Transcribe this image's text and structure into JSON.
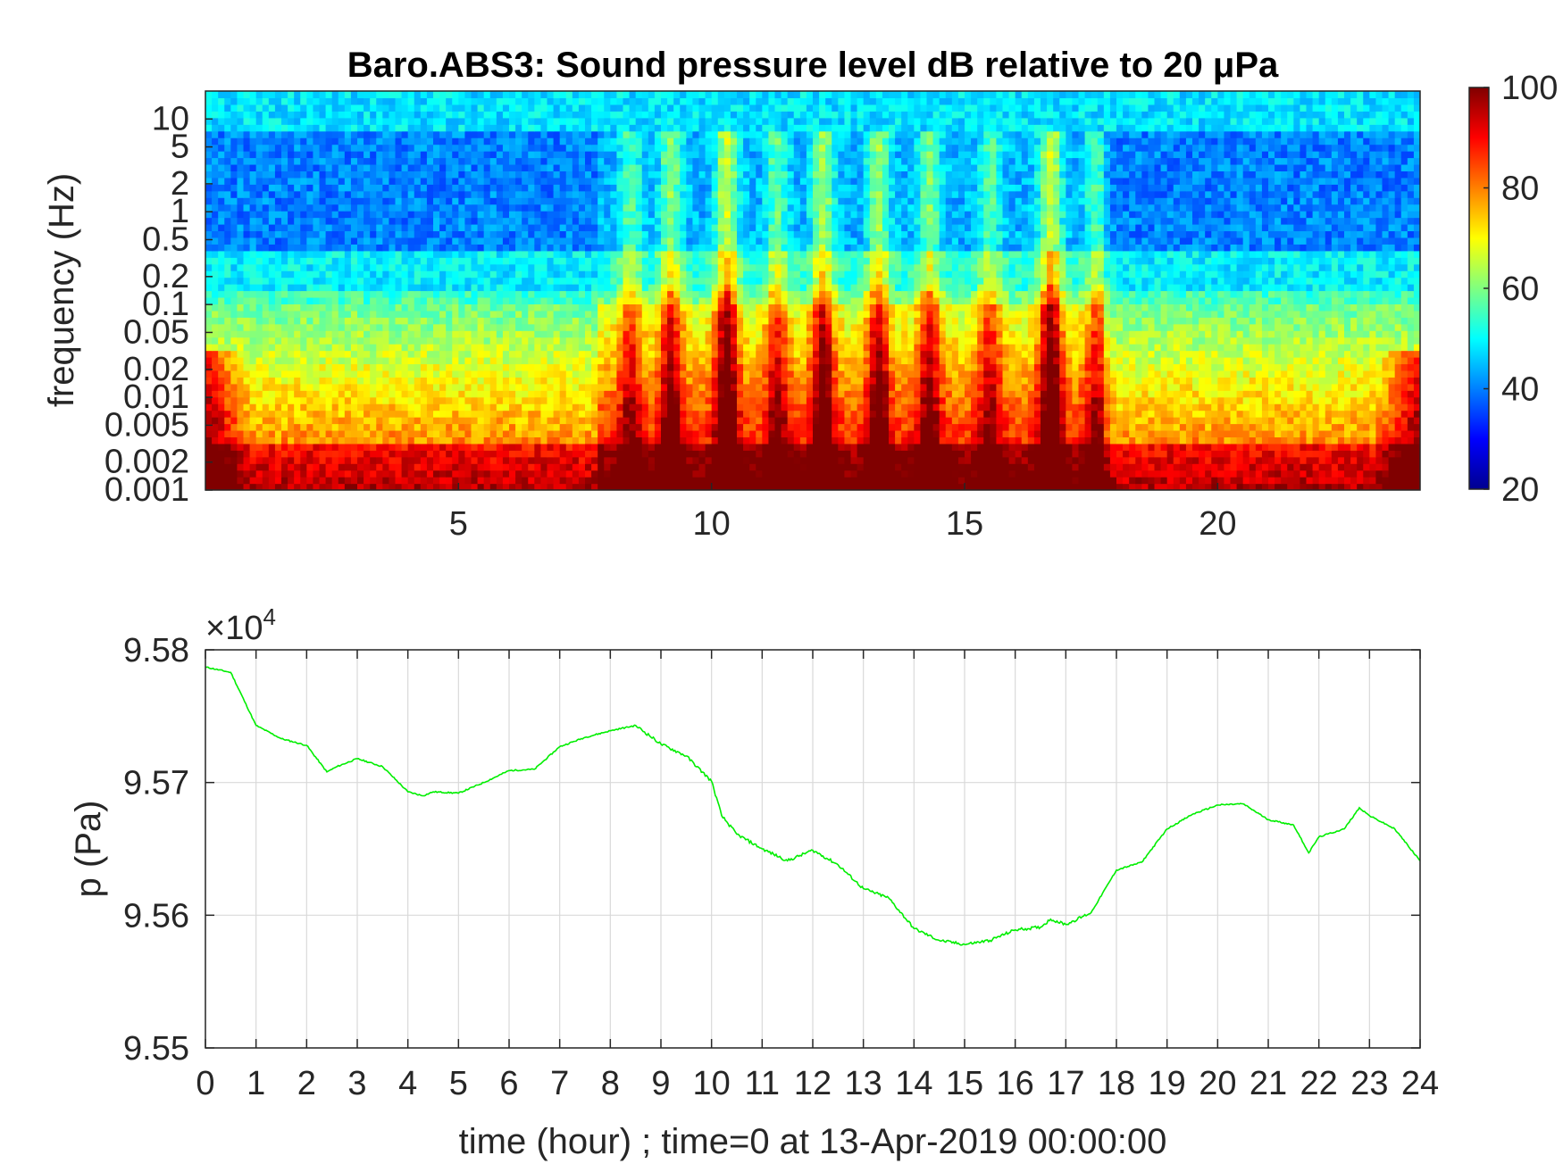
{
  "colors": {
    "line": "#00ee00",
    "grid": "#d9d9d9",
    "axis": "#262626",
    "title": "#000000",
    "colormap": "jet"
  },
  "chart_data": [
    {
      "type": "heatmap",
      "title": "Baro.ABS3: Sound pressure level dB relative to 20 μPa",
      "xlabel": "",
      "ylabel": "frequency (Hz)",
      "x_scale": "linear",
      "y_scale": "log",
      "xlim": [
        0,
        24
      ],
      "ylim": [
        0.001,
        20
      ],
      "xticks": [
        5,
        10,
        15,
        20
      ],
      "xtick_labels": [
        "5",
        "10",
        "15",
        "20"
      ],
      "yticks": [
        0.001,
        0.002,
        0.005,
        0.01,
        0.02,
        0.05,
        0.1,
        0.2,
        0.5,
        1,
        2,
        5,
        10
      ],
      "ytick_labels": [
        "0.001",
        "0.002",
        "0.005",
        "0.01",
        "0.02",
        "0.05",
        "0.1",
        "0.2",
        "0.5",
        "1",
        "2",
        "5",
        "10"
      ],
      "colorbar": {
        "range": [
          20,
          100
        ],
        "ticks": [
          20,
          40,
          60,
          80,
          100
        ],
        "tick_labels": [
          "20",
          "40",
          "60",
          "80",
          "100"
        ],
        "colormap": "jet"
      },
      "bursts": [
        {
          "t": 8.4,
          "strength": 0.55
        },
        {
          "t": 9.2,
          "strength": 0.75
        },
        {
          "t": 10.3,
          "strength": 1.0
        },
        {
          "t": 11.3,
          "strength": 0.6
        },
        {
          "t": 12.2,
          "strength": 0.85
        },
        {
          "t": 13.3,
          "strength": 0.8
        },
        {
          "t": 14.3,
          "strength": 0.7
        },
        {
          "t": 15.5,
          "strength": 0.55
        },
        {
          "t": 16.7,
          "strength": 1.0
        },
        {
          "t": 17.6,
          "strength": 0.5
        }
      ],
      "grid": false
    },
    {
      "type": "line",
      "title": "",
      "xlabel": "time (hour) ; time=0 at 13-Apr-2019 00:00:00",
      "ylabel": "p (Pa)",
      "xlim": [
        0,
        24
      ],
      "ylim": [
        95500,
        95800
      ],
      "xticks": [
        0,
        1,
        2,
        3,
        4,
        5,
        6,
        7,
        8,
        9,
        10,
        11,
        12,
        13,
        14,
        15,
        16,
        17,
        18,
        19,
        20,
        21,
        22,
        23,
        24
      ],
      "yticks": [
        95500,
        95600,
        95700,
        95800
      ],
      "ytick_labels": [
        "9.55",
        "9.56",
        "9.57",
        "9.58"
      ],
      "y_multiplier": "×10",
      "y_multiplier_exp": "4",
      "grid": true,
      "series": [
        {
          "x": [
            0,
            0.5,
            1.0,
            1.5,
            2.0,
            2.4,
            2.6,
            3.0,
            3.5,
            4.0,
            4.3,
            4.5,
            5.0,
            5.5,
            6.0,
            6.5,
            7.0,
            7.5,
            8.0,
            8.5,
            9.0,
            9.5,
            10.0,
            10.2,
            10.5,
            11.0,
            11.5,
            12.0,
            12.5,
            13.0,
            13.5,
            14.0,
            14.5,
            15.0,
            15.5,
            16.0,
            16.5,
            16.7,
            17.0,
            17.5,
            18.0,
            18.5,
            19.0,
            19.5,
            20.0,
            20.5,
            21.0,
            21.5,
            21.8,
            22.0,
            22.5,
            22.8,
            23.0,
            23.5,
            24.0
          ],
          "y": [
            95787,
            95783,
            95743,
            95733,
            95728,
            95708,
            95712,
            95718,
            95712,
            95693,
            95690,
            95693,
            95692,
            95700,
            95709,
            95710,
            95727,
            95734,
            95739,
            95743,
            95729,
            95720,
            95701,
            95675,
            95661,
            95650,
            95641,
            95649,
            95638,
            95620,
            95613,
            95590,
            95581,
            95578,
            95581,
            95589,
            95591,
            95597,
            95593,
            95602,
            95634,
            95640,
            95665,
            95676,
            95683,
            95684,
            95672,
            95668,
            95647,
            95659,
            95665,
            95681,
            95675,
            95665,
            95641
          ]
        }
      ]
    }
  ]
}
